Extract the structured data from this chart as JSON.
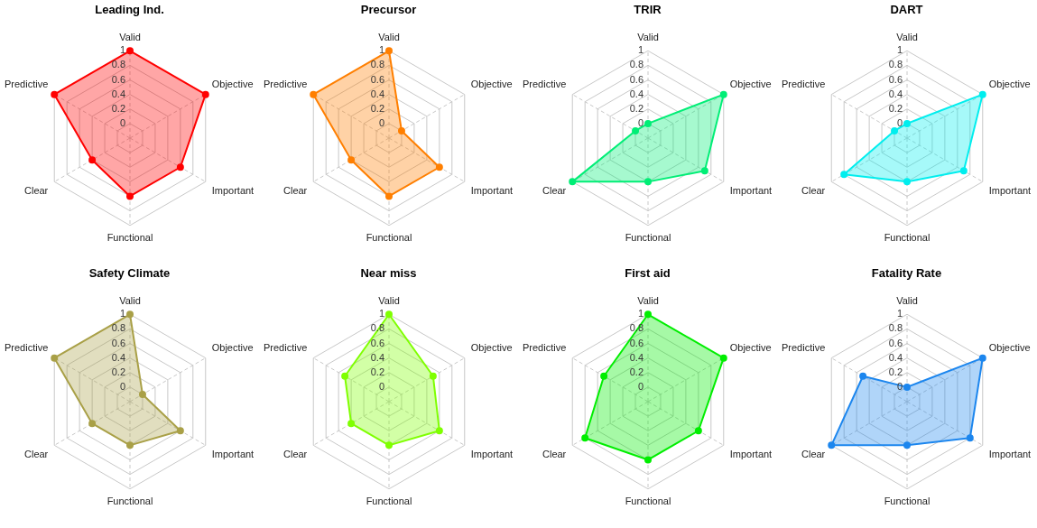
{
  "chart_data": [
    {
      "type": "radar",
      "title": "Leading Ind.",
      "categories": [
        "Valid",
        "Objective",
        "Important",
        "Functional",
        "Clear",
        "Predictive"
      ],
      "ylim": [
        -0.2,
        1
      ],
      "yticks": [
        0,
        0.2,
        0.4,
        0.6,
        0.8,
        1
      ],
      "grid": true,
      "marker": "circle",
      "series": [
        {
          "color": "#ff0000",
          "values": [
            1,
            1,
            0.6,
            0.6,
            0.4,
            1
          ]
        }
      ]
    },
    {
      "type": "radar",
      "title": "Precursor",
      "categories": [
        "Valid",
        "Objective",
        "Important",
        "Functional",
        "Clear",
        "Predictive"
      ],
      "ylim": [
        -0.2,
        1
      ],
      "yticks": [
        0,
        0.2,
        0.4,
        0.6,
        0.8,
        1
      ],
      "grid": true,
      "marker": "circle",
      "series": [
        {
          "color": "#ff7f00",
          "values": [
            1,
            0,
            0.6,
            0.6,
            0.4,
            1
          ]
        }
      ]
    },
    {
      "type": "radar",
      "title": "TRIR",
      "categories": [
        "Valid",
        "Objective",
        "Important",
        "Functional",
        "Clear",
        "Predictive"
      ],
      "ylim": [
        -0.2,
        1
      ],
      "yticks": [
        0,
        0.2,
        0.4,
        0.6,
        0.8,
        1
      ],
      "grid": true,
      "marker": "circle",
      "series": [
        {
          "color": "#00ee76",
          "values": [
            0,
            1,
            0.7,
            0.4,
            1,
            0
          ]
        }
      ]
    },
    {
      "type": "radar",
      "title": "DART",
      "categories": [
        "Valid",
        "Objective",
        "Important",
        "Functional",
        "Clear",
        "Predictive"
      ],
      "ylim": [
        -0.2,
        1
      ],
      "yticks": [
        0,
        0.2,
        0.4,
        0.6,
        0.8,
        1
      ],
      "grid": true,
      "marker": "circle",
      "series": [
        {
          "color": "#00eeee",
          "values": [
            0,
            1,
            0.7,
            0.4,
            0.8,
            0
          ]
        }
      ]
    },
    {
      "type": "radar",
      "title": "Safety Climate",
      "categories": [
        "Valid",
        "Objective",
        "Important",
        "Functional",
        "Clear",
        "Predictive"
      ],
      "ylim": [
        -0.2,
        1
      ],
      "yticks": [
        0,
        0.2,
        0.4,
        0.6,
        0.8,
        1
      ],
      "grid": true,
      "marker": "circle",
      "series": [
        {
          "color": "#a9a047",
          "values": [
            1,
            0,
            0.6,
            0.4,
            0.4,
            1
          ]
        }
      ]
    },
    {
      "type": "radar",
      "title": "Near miss",
      "categories": [
        "Valid",
        "Objective",
        "Important",
        "Functional",
        "Clear",
        "Predictive"
      ],
      "ylim": [
        -0.2,
        1
      ],
      "yticks": [
        0,
        0.2,
        0.4,
        0.6,
        0.8,
        1
      ],
      "grid": true,
      "marker": "circle",
      "series": [
        {
          "color": "#7fff00",
          "values": [
            1,
            0.5,
            0.6,
            0.4,
            0.4,
            0.5
          ]
        }
      ]
    },
    {
      "type": "radar",
      "title": "First aid",
      "categories": [
        "Valid",
        "Objective",
        "Important",
        "Functional",
        "Clear",
        "Predictive"
      ],
      "ylim": [
        -0.2,
        1
      ],
      "yticks": [
        0,
        0.2,
        0.4,
        0.6,
        0.8,
        1
      ],
      "grid": true,
      "marker": "circle",
      "series": [
        {
          "color": "#00ee00",
          "values": [
            1,
            1,
            0.6,
            0.6,
            0.8,
            0.5
          ]
        }
      ]
    },
    {
      "type": "radar",
      "title": "Fatality Rate",
      "categories": [
        "Valid",
        "Objective",
        "Important",
        "Functional",
        "Clear",
        "Predictive"
      ],
      "ylim": [
        -0.2,
        1
      ],
      "yticks": [
        0,
        0.2,
        0.4,
        0.6,
        0.8,
        1
      ],
      "grid": true,
      "marker": "circle",
      "series": [
        {
          "color": "#1c86ee",
          "values": [
            0,
            1,
            0.8,
            0.4,
            1,
            0.5
          ]
        }
      ]
    }
  ]
}
